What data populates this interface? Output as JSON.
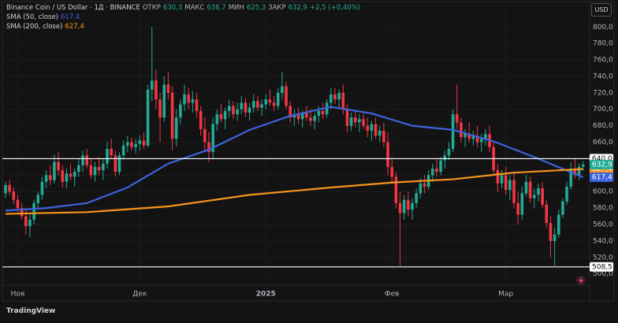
{
  "chart_data": {
    "type": "candlestick",
    "title": "Binance Coin / US Dollar · 1Д · BINANCE",
    "currency": "USD",
    "brand": "TradingView",
    "header": {
      "open_label": "ОТКР",
      "open": {
        "value": 630.3,
        "label": "630,3"
      },
      "high_label": "МАКС",
      "high": {
        "value": 636.7,
        "label": "636,7"
      },
      "low_label": "МИН",
      "low": {
        "value": 625.3,
        "label": "625,3"
      },
      "close_label": "ЗАКР",
      "close": {
        "value": 632.9,
        "label": "632,9"
      },
      "change": "+2,5 (+0,40%)"
    },
    "up_color": "#22ab94",
    "down_color": "#f23645",
    "ylim": [
      493,
      806
    ],
    "yticks": [
      {
        "value": 500,
        "label": "500,0"
      },
      {
        "value": 520,
        "label": "520,0"
      },
      {
        "value": 540,
        "label": "540,0"
      },
      {
        "value": 560,
        "label": "560,0"
      },
      {
        "value": 580,
        "label": "580,0"
      },
      {
        "value": 600,
        "label": "600,0"
      },
      {
        "value": 620,
        "label": "620,0"
      },
      {
        "value": 640,
        "label": "640,0"
      },
      {
        "value": 660,
        "label": "660,0"
      },
      {
        "value": 680,
        "label": "680,0"
      },
      {
        "value": 700,
        "label": "700,0"
      },
      {
        "value": 720,
        "label": "720,0"
      },
      {
        "value": 740,
        "label": "740,0"
      },
      {
        "value": 760,
        "label": "760,0"
      },
      {
        "value": 780,
        "label": "780,0"
      },
      {
        "value": 800,
        "label": "800,0"
      }
    ],
    "hlines": [
      {
        "value": 640,
        "label": "640,0"
      },
      {
        "value": 508.5,
        "label": "508,5"
      }
    ],
    "categories": [
      null,
      null,
      null,
      "Ноя",
      null,
      null,
      null,
      null,
      null,
      null,
      null,
      null,
      null,
      null,
      null,
      null,
      null,
      null,
      null,
      null,
      null,
      null,
      null,
      null,
      null,
      null,
      null,
      null,
      null,
      null,
      null,
      null,
      null,
      "Дек",
      null,
      null,
      null,
      null,
      null,
      null,
      null,
      null,
      null,
      null,
      null,
      null,
      null,
      null,
      null,
      null,
      null,
      null,
      null,
      null,
      null,
      null,
      null,
      null,
      null,
      null,
      null,
      null,
      null,
      null,
      "2025",
      null,
      null,
      null,
      null,
      null,
      null,
      null,
      null,
      null,
      null,
      null,
      null,
      null,
      null,
      null,
      null,
      null,
      null,
      null,
      null,
      null,
      null,
      null,
      null,
      null,
      null,
      null,
      null,
      null,
      null,
      "Фев",
      null,
      null,
      null,
      null,
      null,
      null,
      null,
      null,
      null,
      null,
      null,
      null,
      null,
      null,
      null,
      null,
      null,
      null,
      null,
      null,
      null,
      null,
      null,
      null,
      null,
      null,
      null,
      "Мар",
      null,
      null,
      null,
      null,
      null,
      null,
      null,
      null,
      null,
      null,
      null,
      null,
      null,
      null,
      null,
      null,
      null,
      null,
      null
    ],
    "ohlc": [
      [
        598,
        612,
        592,
        608
      ],
      [
        608,
        614,
        596,
        600
      ],
      [
        600,
        605,
        585,
        590
      ],
      [
        590,
        596,
        575,
        580
      ],
      [
        580,
        586,
        566,
        570
      ],
      [
        570,
        578,
        548,
        558
      ],
      [
        558,
        572,
        545,
        566
      ],
      [
        566,
        590,
        560,
        586
      ],
      [
        586,
        600,
        580,
        596
      ],
      [
        596,
        618,
        590,
        612
      ],
      [
        612,
        626,
        604,
        620
      ],
      [
        620,
        632,
        608,
        614
      ],
      [
        614,
        645,
        610,
        636
      ],
      [
        636,
        648,
        620,
        626
      ],
      [
        626,
        632,
        605,
        612
      ],
      [
        612,
        628,
        604,
        622
      ],
      [
        622,
        634,
        614,
        618
      ],
      [
        618,
        628,
        606,
        624
      ],
      [
        624,
        640,
        618,
        632
      ],
      [
        632,
        650,
        624,
        644
      ],
      [
        644,
        652,
        628,
        632
      ],
      [
        632,
        640,
        616,
        620
      ],
      [
        620,
        636,
        612,
        630
      ],
      [
        630,
        642,
        620,
        626
      ],
      [
        626,
        640,
        614,
        634
      ],
      [
        634,
        660,
        628,
        652
      ],
      [
        652,
        664,
        640,
        644
      ],
      [
        644,
        650,
        618,
        624
      ],
      [
        624,
        648,
        620,
        644
      ],
      [
        644,
        662,
        638,
        656
      ],
      [
        656,
        668,
        648,
        660
      ],
      [
        660,
        666,
        650,
        654
      ],
      [
        654,
        664,
        646,
        658
      ],
      [
        658,
        668,
        650,
        662
      ],
      [
        662,
        672,
        652,
        656
      ],
      [
        656,
        730,
        654,
        724
      ],
      [
        724,
        800,
        710,
        735
      ],
      [
        735,
        748,
        700,
        712
      ],
      [
        712,
        720,
        660,
        690
      ],
      [
        690,
        740,
        685,
        730
      ],
      [
        730,
        745,
        712,
        720
      ],
      [
        720,
        728,
        650,
        664
      ],
      [
        664,
        700,
        655,
        690
      ],
      [
        690,
        712,
        682,
        706
      ],
      [
        706,
        730,
        698,
        718
      ],
      [
        718,
        726,
        700,
        708
      ],
      [
        708,
        722,
        696,
        712
      ],
      [
        712,
        720,
        690,
        698
      ],
      [
        698,
        704,
        668,
        676
      ],
      [
        676,
        690,
        650,
        660
      ],
      [
        660,
        672,
        636,
        648
      ],
      [
        648,
        690,
        640,
        682
      ],
      [
        682,
        700,
        674,
        694
      ],
      [
        694,
        706,
        684,
        688
      ],
      [
        688,
        702,
        676,
        698
      ],
      [
        698,
        712,
        690,
        704
      ],
      [
        704,
        710,
        688,
        694
      ],
      [
        694,
        708,
        686,
        700
      ],
      [
        700,
        716,
        694,
        708
      ],
      [
        708,
        714,
        690,
        696
      ],
      [
        696,
        708,
        686,
        702
      ],
      [
        702,
        718,
        696,
        710
      ],
      [
        710,
        716,
        698,
        702
      ],
      [
        702,
        712,
        692,
        706
      ],
      [
        706,
        718,
        700,
        712
      ],
      [
        712,
        724,
        704,
        708
      ],
      [
        708,
        716,
        698,
        704
      ],
      [
        704,
        726,
        700,
        720
      ],
      [
        720,
        745,
        712,
        728
      ],
      [
        728,
        734,
        700,
        704
      ],
      [
        704,
        710,
        684,
        690
      ],
      [
        690,
        700,
        680,
        694
      ],
      [
        694,
        702,
        682,
        688
      ],
      [
        688,
        698,
        678,
        696
      ],
      [
        696,
        704,
        686,
        690
      ],
      [
        690,
        700,
        680,
        686
      ],
      [
        686,
        696,
        676,
        692
      ],
      [
        692,
        704,
        684,
        698
      ],
      [
        698,
        708,
        688,
        694
      ],
      [
        694,
        712,
        690,
        708
      ],
      [
        708,
        726,
        700,
        718
      ],
      [
        718,
        726,
        706,
        712
      ],
      [
        712,
        724,
        702,
        720
      ],
      [
        720,
        730,
        694,
        700
      ],
      [
        700,
        706,
        672,
        680
      ],
      [
        680,
        696,
        674,
        690
      ],
      [
        690,
        698,
        678,
        684
      ],
      [
        684,
        694,
        672,
        688
      ],
      [
        688,
        696,
        676,
        680
      ],
      [
        680,
        690,
        666,
        674
      ],
      [
        674,
        686,
        662,
        682
      ],
      [
        682,
        690,
        664,
        668
      ],
      [
        668,
        680,
        660,
        674
      ],
      [
        674,
        684,
        654,
        660
      ],
      [
        660,
        672,
        620,
        630
      ],
      [
        630,
        640,
        610,
        618
      ],
      [
        618,
        624,
        580,
        586
      ],
      [
        586,
        600,
        510,
        574
      ],
      [
        574,
        596,
        566,
        590
      ],
      [
        590,
        600,
        570,
        578
      ],
      [
        578,
        592,
        566,
        586
      ],
      [
        586,
        604,
        580,
        598
      ],
      [
        598,
        616,
        592,
        610
      ],
      [
        610,
        620,
        598,
        606
      ],
      [
        606,
        626,
        602,
        620
      ],
      [
        620,
        634,
        612,
        628
      ],
      [
        628,
        640,
        618,
        624
      ],
      [
        624,
        642,
        620,
        638
      ],
      [
        638,
        650,
        628,
        644
      ],
      [
        644,
        660,
        638,
        652
      ],
      [
        652,
        700,
        648,
        694
      ],
      [
        694,
        730,
        676,
        684
      ],
      [
        684,
        690,
        660,
        666
      ],
      [
        666,
        676,
        654,
        670
      ],
      [
        670,
        684,
        660,
        664
      ],
      [
        664,
        674,
        656,
        668
      ],
      [
        668,
        680,
        654,
        660
      ],
      [
        660,
        670,
        648,
        664
      ],
      [
        664,
        676,
        656,
        670
      ],
      [
        670,
        680,
        648,
        654
      ],
      [
        654,
        662,
        620,
        626
      ],
      [
        626,
        634,
        600,
        610
      ],
      [
        610,
        626,
        604,
        620
      ],
      [
        620,
        630,
        596,
        602
      ],
      [
        602,
        620,
        590,
        614
      ],
      [
        614,
        622,
        580,
        586
      ],
      [
        586,
        600,
        560,
        572
      ],
      [
        572,
        606,
        566,
        598
      ],
      [
        598,
        620,
        594,
        612
      ],
      [
        612,
        618,
        586,
        592
      ],
      [
        592,
        604,
        580,
        596
      ],
      [
        596,
        610,
        588,
        604
      ],
      [
        604,
        612,
        580,
        584
      ],
      [
        584,
        590,
        556,
        562
      ],
      [
        562,
        570,
        520,
        540
      ],
      [
        540,
        556,
        510,
        548
      ],
      [
        548,
        578,
        544,
        572
      ],
      [
        572,
        592,
        568,
        588
      ],
      [
        588,
        612,
        584,
        606
      ],
      [
        606,
        636,
        602,
        628
      ],
      [
        628,
        640,
        616,
        620
      ],
      [
        620,
        634,
        614,
        630
      ],
      [
        630.3,
        636.7,
        625.3,
        632.9
      ]
    ],
    "series": [
      {
        "name": "SMA (50, close)",
        "color": "#3d63dd",
        "last": {
          "value": 617.4,
          "label": "617,4"
        },
        "x": [
          0,
          10,
          20,
          30,
          40,
          50,
          60,
          70,
          80,
          90,
          100,
          110,
          120,
          130,
          142
        ],
        "values": [
          577,
          580,
          586,
          605,
          634,
          651,
          675,
          692,
          703,
          695,
          680,
          675,
          661,
          642,
          617.4
        ]
      },
      {
        "name": "SMA (200, close)",
        "color": "#f7941d",
        "last": {
          "value": 627.4,
          "label": "627,4"
        },
        "x": [
          0,
          20,
          40,
          60,
          80,
          95,
          110,
          125,
          142
        ],
        "values": [
          573,
          575,
          582,
          596,
          605,
          611,
          615,
          623,
          627.4
        ]
      }
    ]
  }
}
